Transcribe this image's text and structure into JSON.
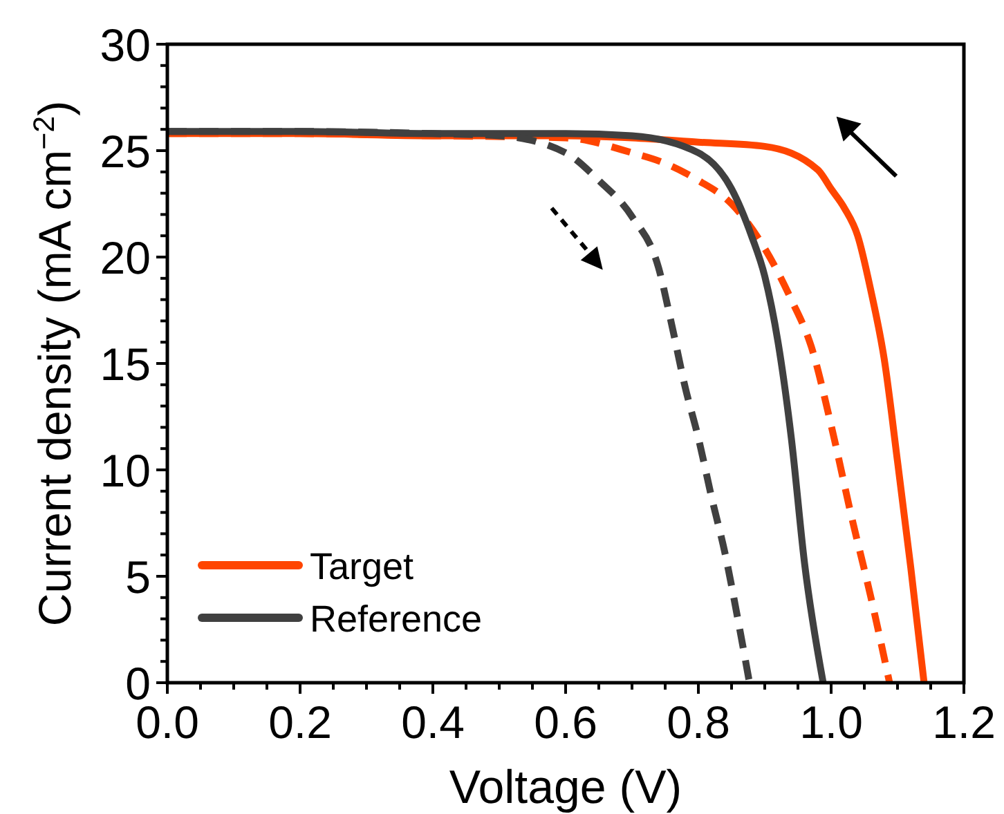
{
  "chart_data": {
    "type": "line",
    "xlabel": "Voltage (V)",
    "ylabel": "Current density (mA cm$^{−2}$)",
    "xlim": [
      0,
      1.2
    ],
    "ylim": [
      0,
      30
    ],
    "xticks": [
      {
        "value": 0,
        "label": "0.0"
      },
      {
        "value": 0.05,
        "label": null
      },
      {
        "value": 0.2,
        "label": "0.2"
      },
      {
        "value": 0.1,
        "label": null
      },
      {
        "value": 0.15,
        "label": null
      },
      {
        "value": 0.25,
        "label": null
      },
      {
        "value": 0.3,
        "label": null
      },
      {
        "value": 0.35,
        "label": null
      },
      {
        "value": 0.4,
        "label": "0.4"
      },
      {
        "value": 0.45,
        "label": null
      },
      {
        "value": 0.5,
        "label": null
      },
      {
        "value": 0.55,
        "label": null
      },
      {
        "value": 0.6,
        "label": "0.6"
      },
      {
        "value": 0.65,
        "label": null
      },
      {
        "value": 0.7,
        "label": null
      },
      {
        "value": 0.75,
        "label": null
      },
      {
        "value": 0.8,
        "label": "0.8"
      },
      {
        "value": 0.85,
        "label": null
      },
      {
        "value": 0.9,
        "label": null
      },
      {
        "value": 0.95,
        "label": null
      },
      {
        "value": 1.0,
        "label": "1.0"
      },
      {
        "value": 1.05,
        "label": null
      },
      {
        "value": 1.1,
        "label": null
      },
      {
        "value": 1.15,
        "label": null
      },
      {
        "value": 1.2,
        "label": "1.2"
      }
    ],
    "yticks": [
      0,
      5,
      10,
      15,
      20,
      25,
      30,
      {
        "value": 1,
        "label": null
      },
      {
        "value": 2,
        "label": null
      },
      {
        "value": 3,
        "label": null
      },
      {
        "value": 4,
        "label": null
      },
      {
        "value": 6,
        "label": null
      },
      {
        "value": 7,
        "label": null
      },
      {
        "value": 8,
        "label": null
      },
      {
        "value": 9,
        "label": null
      },
      {
        "value": 11,
        "label": null
      },
      {
        "value": 12,
        "label": null
      },
      {
        "value": 13,
        "label": null
      },
      {
        "value": 14,
        "label": null
      },
      {
        "value": 16,
        "label": null
      },
      {
        "value": 17,
        "label": null
      },
      {
        "value": 18,
        "label": null
      },
      {
        "value": 19,
        "label": null
      },
      {
        "value": 21,
        "label": null
      },
      {
        "value": 22,
        "label": null
      },
      {
        "value": 23,
        "label": null
      },
      {
        "value": 24,
        "label": null
      },
      {
        "value": 26,
        "label": null
      },
      {
        "value": 27,
        "label": null
      },
      {
        "value": 28,
        "label": null
      },
      {
        "value": 29,
        "label": null
      }
    ],
    "grid": false,
    "legend": "bottom left",
    "series": [
      {
        "name": "Target",
        "color": "#ff4500",
        "line_style": "solid",
        "x": [
          0,
          0.2,
          0.4,
          0.6,
          0.7,
          0.8,
          0.9,
          0.98,
          1.0,
          1.02,
          1.04,
          1.06,
          1.08,
          1.1,
          1.12,
          1.14
        ],
        "values": [
          25.8,
          25.8,
          25.7,
          25.7,
          25.6,
          25.4,
          25.2,
          24.1,
          23.2,
          22.3,
          21.0,
          18.4,
          15.2,
          10.4,
          5.4,
          0
        ]
      },
      {
        "color": "#ff4500",
        "line_style": "dashed",
        "x": [
          0,
          0.2,
          0.4,
          0.6,
          0.7,
          0.75,
          0.8,
          0.85,
          0.9,
          0.94,
          0.97,
          1.0,
          1.03,
          1.06,
          1.088
        ],
        "values": [
          25.8,
          25.8,
          25.7,
          25.6,
          24.9,
          24.4,
          23.6,
          22.5,
          20.4,
          18.0,
          15.8,
          12.1,
          7.9,
          4.0,
          0
        ]
      },
      {
        "name": "Reference",
        "color": "#404040",
        "line_style": "solid",
        "x": [
          0,
          0.2,
          0.4,
          0.6,
          0.7,
          0.8,
          0.85,
          0.88,
          0.9,
          0.92,
          0.94,
          0.96,
          0.988
        ],
        "values": [
          25.9,
          25.9,
          25.8,
          25.8,
          25.7,
          24.9,
          23.2,
          21.0,
          19.1,
          16.0,
          11.5,
          5.6,
          0
        ]
      },
      {
        "color": "#404040",
        "line_style": "dashed",
        "x": [
          0,
          0.2,
          0.4,
          0.5,
          0.6,
          0.65,
          0.7,
          0.74,
          0.76,
          0.78,
          0.8,
          0.82,
          0.84,
          0.86,
          0.877
        ],
        "values": [
          25.9,
          25.9,
          25.8,
          25.7,
          24.9,
          23.6,
          21.9,
          19.5,
          16.8,
          13.9,
          11.5,
          8.7,
          6.1,
          2.9,
          0
        ]
      }
    ]
  }
}
